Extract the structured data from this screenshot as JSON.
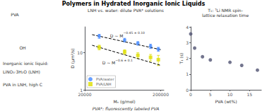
{
  "title": "Polymers in Hydrated Inorganic Ionic Liquids",
  "footer": "PVA*: fluorescently labeled PVA",
  "texts": [
    "PVA",
    "OH",
    "Inorganic ionic liquid:",
    "LiNO₃·3H₂O (LNH)",
    "PVA in LNH, high C"
  ],
  "chart_data": [
    {
      "type": "scatter",
      "subtitle": "LNH vs. water: dilute PVA* solutions",
      "log": true,
      "grid": false,
      "legend": "lower left",
      "xlabel": "Mₙ (g/mol)",
      "ylabel": "D (μm²/s)",
      "xlim": [
        20000,
        220000
      ],
      "ylim": [
        1,
        50
      ],
      "xticks": [
        20000,
        200000
      ],
      "yticks": [
        1,
        10
      ],
      "series": [
        {
          "name": "PVA/water",
          "color": "#4488ff",
          "marker": "circle",
          "x": [
            31000,
            67000,
            100000,
            147000,
            186000
          ],
          "values": [
            28,
            22,
            18,
            15,
            12.5
          ],
          "errors": [
            3.5,
            2.5,
            2.0,
            2.0,
            1.5
          ]
        },
        {
          "name": "PVA/LNH",
          "color": "#dddd00",
          "marker": "square",
          "x": [
            31000,
            67000,
            100000,
            147000,
            186000
          ],
          "values": [
            14,
            10.5,
            8.5,
            7.5,
            6.5
          ],
          "errors": [
            2.0,
            1.5,
            1.5,
            1.5,
            2.0
          ]
        },
        {
          "type": "line",
          "line_style": "dashed",
          "color": "#000000",
          "x": [
            25000,
            200000
          ],
          "values": [
            30.846,
            12.101
          ]
        },
        {
          "type": "line",
          "line_style": "dashed",
          "color": "#000000",
          "x": [
            25000,
            200000
          ],
          "values": [
            15.929,
            4.574
          ]
        }
      ],
      "annotations": [
        {
          "text": "D ~ M",
          "superscript": "−0.45 ± 0.10"
        },
        {
          "text": "D ~ M",
          "superscript": "−0.6 ± 0.1"
        }
      ]
    },
    {
      "type": "scatter",
      "subtitle": "T₁: ⁷Li NMR spin-\nlattice relaxation time",
      "grid": false,
      "marker": "circle",
      "xlabel": "PVA (wt%)",
      "ylabel": "T₁ (s)",
      "x": [
        0,
        1,
        3,
        5,
        10,
        13,
        17
      ],
      "values": [
        3.55,
        2.65,
        2.1,
        1.9,
        1.75,
        1.55,
        1.25
      ],
      "xlim": [
        0,
        18
      ],
      "ylim": [
        0,
        4
      ],
      "xticks": [
        0,
        5,
        10,
        15
      ],
      "yticks": [
        0,
        1,
        2,
        3,
        4
      ]
    }
  ]
}
